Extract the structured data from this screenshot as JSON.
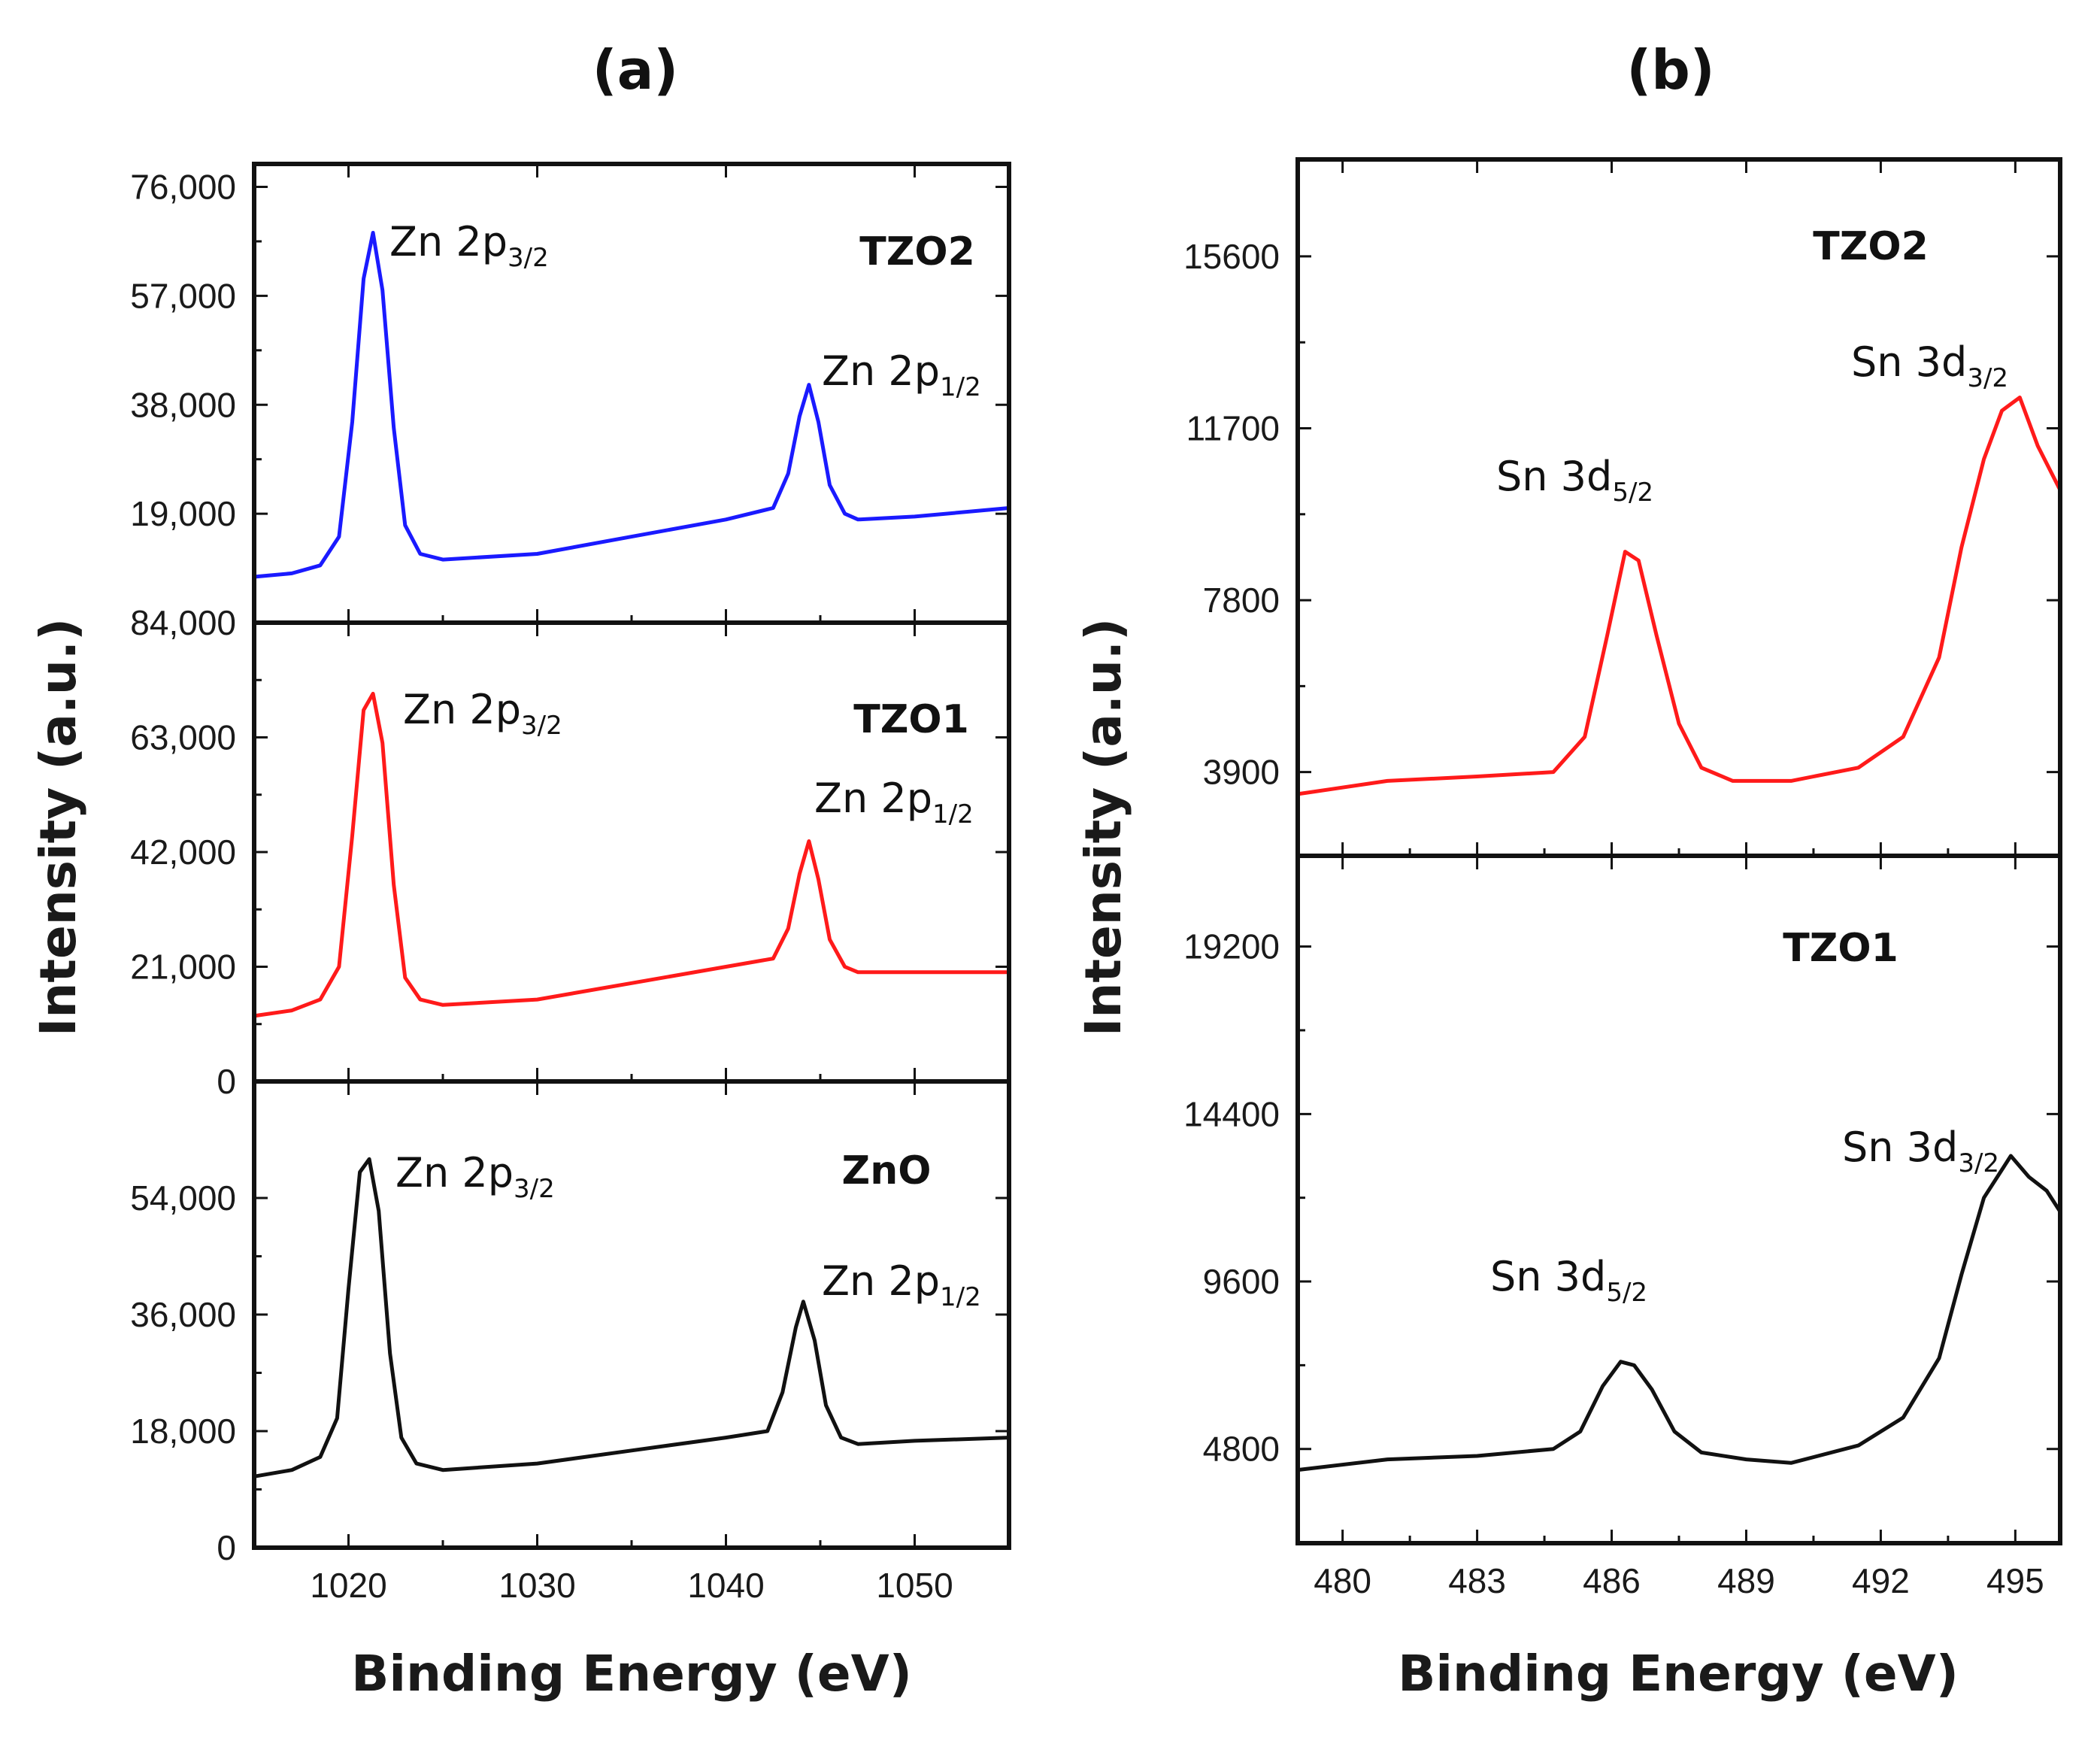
{
  "chart_data": [
    {
      "type": "line",
      "panel": "(a)",
      "xlabel": "Binding Energy (eV)",
      "ylabel": "Intensity (a.u.)",
      "xlim": [
        1015,
        1055
      ],
      "xticks": [
        1020,
        1030,
        1040,
        1050
      ],
      "xtick_labels": [
        "1020",
        "1030",
        "1040",
        "1050"
      ],
      "subplots": [
        {
          "sample": "TZO2",
          "color": "#1a1aff",
          "ylim": [
            0,
            80000
          ],
          "yticks": [
            19000,
            38000,
            57000,
            76000
          ],
          "ytick_labels": [
            "19,000",
            "38,000",
            "57,000",
            "76,000"
          ],
          "series": {
            "name": "TZO2",
            "x": [
              1015,
              1017,
              1018.5,
              1019.5,
              1020.2,
              1020.8,
              1021.3,
              1021.8,
              1022.4,
              1023.0,
              1023.8,
              1025,
              1030,
              1035,
              1040,
              1042.5,
              1043.3,
              1043.9,
              1044.4,
              1044.9,
              1045.5,
              1046.3,
              1047,
              1050,
              1055
            ],
            "y": [
              8000,
              8600,
              10000,
              15000,
              35000,
              60000,
              68000,
              58000,
              34000,
              17000,
              12000,
              11000,
              12000,
              15000,
              18000,
              20000,
              26000,
              36000,
              41500,
              35000,
              24000,
              19000,
              18000,
              18500,
              20000
            ]
          },
          "annotations": [
            {
              "main": "Zn 2p",
              "sub": "3/2",
              "x": 1020.8,
              "y": 68000
            },
            {
              "main": "Zn 2p",
              "sub": "1/2",
              "x": 1044.1,
              "y": 41500
            }
          ]
        },
        {
          "sample": "TZO1",
          "color": "#ff1a1a",
          "ylim": [
            0,
            84000
          ],
          "yticks": [
            0,
            21000,
            42000,
            63000,
            84000
          ],
          "ytick_labels": [
            "0",
            "21,000",
            "42,000",
            "63,000",
            "84,000"
          ],
          "series": {
            "name": "TZO1",
            "x": [
              1015,
              1017,
              1018.5,
              1019.5,
              1020.2,
              1020.8,
              1021.3,
              1021.8,
              1022.4,
              1023.0,
              1023.8,
              1025,
              1030,
              1035,
              1040,
              1042.5,
              1043.3,
              1043.9,
              1044.4,
              1044.9,
              1045.5,
              1046.3,
              1047,
              1050,
              1055
            ],
            "y": [
              12000,
              13000,
              15000,
              21000,
              45000,
              68000,
              71000,
              62000,
              36000,
              19000,
              15000,
              14000,
              15000,
              18000,
              21000,
              22500,
              28000,
              38000,
              44000,
              37000,
              26000,
              21000,
              20000,
              20000,
              20000
            ]
          },
          "annotations": [
            {
              "main": "Zn 2p",
              "sub": "3/2",
              "x": 1020.8,
              "y": 71000
            },
            {
              "main": "Zn 2p",
              "sub": "1/2",
              "x": 1044.1,
              "y": 44000
            }
          ]
        },
        {
          "sample": "ZnO",
          "color": "#111111",
          "ylim": [
            0,
            72000
          ],
          "yticks": [
            0,
            18000,
            36000,
            54000
          ],
          "ytick_labels": [
            "0",
            "18,000",
            "36,000",
            "54,000"
          ],
          "series": {
            "name": "ZnO",
            "x": [
              1015,
              1017,
              1018.5,
              1019.4,
              1020.0,
              1020.6,
              1021.1,
              1021.6,
              1022.2,
              1022.8,
              1023.6,
              1025,
              1030,
              1035,
              1040,
              1042.2,
              1043.0,
              1043.7,
              1044.1,
              1044.7,
              1045.3,
              1046.1,
              1047,
              1050,
              1055
            ],
            "y": [
              11000,
              12000,
              14000,
              20000,
              40000,
              58000,
              60000,
              52000,
              30000,
              17000,
              13000,
              12000,
              13000,
              15000,
              17000,
              18000,
              24000,
              34000,
              38000,
              32000,
              22000,
              17000,
              16000,
              16500,
              17000
            ]
          },
          "annotations": [
            {
              "main": "Zn 2p",
              "sub": "3/2",
              "x": 1020.6,
              "y": 60000
            },
            {
              "main": "Zn 2p",
              "sub": "1/2",
              "x": 1043.9,
              "y": 38000
            }
          ]
        }
      ]
    },
    {
      "type": "line",
      "panel": "(b)",
      "xlabel": "Binding Energy (eV)",
      "ylabel": "Intensity (a.u.)",
      "xlim": [
        479,
        496
      ],
      "xticks": [
        480,
        483,
        486,
        489,
        492,
        495
      ],
      "xtick_labels": [
        "480",
        "483",
        "486",
        "489",
        "492",
        "495"
      ],
      "subplots": [
        {
          "sample": "TZO2",
          "color": "#ff1a1a",
          "ylim": [
            2000,
            17800
          ],
          "yticks": [
            3900,
            7800,
            11700,
            15600
          ],
          "ytick_labels": [
            "3900",
            "7800",
            "11700",
            "15600"
          ],
          "series": {
            "name": "TZO2",
            "x": [
              479,
              481,
              483,
              484.7,
              485.4,
              485.9,
              486.3,
              486.6,
              487.0,
              487.5,
              488.0,
              488.7,
              490,
              491.5,
              492.5,
              493.3,
              493.8,
              494.3,
              494.7,
              495.1,
              495.5,
              496
            ],
            "y": [
              3400,
              3700,
              3800,
              3900,
              4700,
              7000,
              8900,
              8700,
              7000,
              5000,
              4000,
              3700,
              3700,
              4000,
              4700,
              6500,
              9000,
              11000,
              12100,
              12400,
              11300,
              10300
            ]
          },
          "annotations": [
            {
              "main": "Sn 3d",
              "sub": "5/2",
              "x": 486.4,
              "y": 8900
            },
            {
              "main": "Sn 3d",
              "sub": "3/2",
              "x": 495.0,
              "y": 12400
            }
          ]
        },
        {
          "sample": "TZO1",
          "color": "#111111",
          "ylim": [
            2100,
            21800
          ],
          "yticks": [
            4800,
            9600,
            14400,
            19200
          ],
          "ytick_labels": [
            "4800",
            "9600",
            "14400",
            "19200"
          ],
          "series": {
            "name": "TZO1",
            "x": [
              479,
              481,
              483,
              484.7,
              485.3,
              485.8,
              486.2,
              486.5,
              486.9,
              487.4,
              488.0,
              489,
              490,
              491.5,
              492.5,
              493.3,
              493.8,
              494.3,
              494.9,
              495.3,
              495.7,
              496
            ],
            "y": [
              4200,
              4500,
              4600,
              4800,
              5300,
              6600,
              7300,
              7200,
              6500,
              5300,
              4700,
              4500,
              4400,
              4900,
              5700,
              7400,
              9800,
              12000,
              13200,
              12600,
              12200,
              11600
            ]
          },
          "annotations": [
            {
              "main": "Sn 3d",
              "sub": "5/2",
              "x": 486.3,
              "y": 7300
            },
            {
              "main": "Sn 3d",
              "sub": "3/2",
              "x": 494.9,
              "y": 13200
            }
          ]
        }
      ]
    }
  ]
}
